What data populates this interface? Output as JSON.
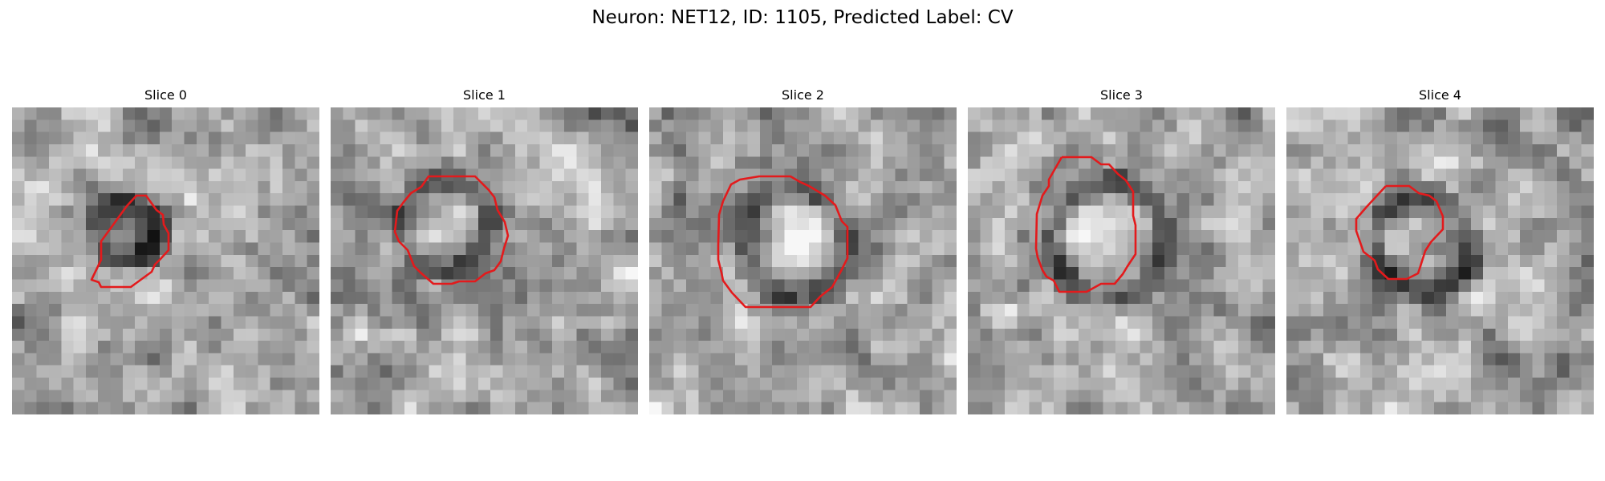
{
  "figure": {
    "title": "Neuron: NET12, ID: 1105, Predicted Label: CV"
  },
  "panels": [
    {
      "title": "Slice 0",
      "roi_color": "#e31a1c"
    },
    {
      "title": "Slice 1",
      "roi_color": "#e31a1c"
    },
    {
      "title": "Slice 2",
      "roi_color": "#e31a1c"
    },
    {
      "title": "Slice 3",
      "roi_color": "#e31a1c"
    },
    {
      "title": "Slice 4",
      "roi_color": "#e31a1c"
    }
  ]
}
